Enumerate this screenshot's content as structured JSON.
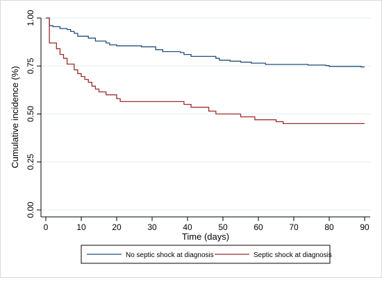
{
  "chart_data": {
    "type": "line",
    "step": true,
    "xlabel": "Time (days)",
    "ylabel": "Cumulative incidence (%)",
    "xlim": [
      0,
      90
    ],
    "ylim": [
      0,
      1
    ],
    "x_ticks": [
      0,
      10,
      20,
      30,
      40,
      50,
      60,
      70,
      80,
      90
    ],
    "y_ticks": [
      0,
      0.25,
      0.5,
      0.75,
      1
    ],
    "x_tick_labels": [
      "0",
      "10",
      "20",
      "30",
      "40",
      "50",
      "60",
      "70",
      "80",
      "90"
    ],
    "y_tick_labels": [
      "0.00",
      "0.25",
      "0.50",
      "0.75",
      "1.00"
    ],
    "grid": "horizontal",
    "legend_position": "bottom",
    "series": [
      {
        "name": "No septic shock at diagnosis",
        "color": "#1f4e79",
        "x": [
          0,
          1,
          2,
          4,
          6,
          7,
          8,
          9,
          12,
          14,
          17,
          18,
          20,
          27,
          31,
          33,
          38,
          39,
          41,
          48,
          49,
          52,
          55,
          58,
          62,
          74,
          79,
          80,
          89,
          90
        ],
        "y": [
          1.0,
          0.96,
          0.955,
          0.945,
          0.94,
          0.93,
          0.92,
          0.905,
          0.895,
          0.88,
          0.87,
          0.86,
          0.855,
          0.85,
          0.835,
          0.825,
          0.82,
          0.81,
          0.8,
          0.79,
          0.78,
          0.775,
          0.77,
          0.765,
          0.758,
          0.755,
          0.752,
          0.748,
          0.745,
          0.745
        ]
      },
      {
        "name": "Septic shock at diagnosis",
        "color": "#9b2c2c",
        "x": [
          0,
          1,
          3,
          4,
          5,
          6,
          8,
          9,
          10,
          11,
          12,
          13,
          14,
          15,
          17,
          20,
          21,
          38,
          39,
          41,
          46,
          48,
          55,
          59,
          65,
          67,
          90
        ],
        "y": [
          1.0,
          0.87,
          0.84,
          0.81,
          0.79,
          0.76,
          0.73,
          0.71,
          0.695,
          0.68,
          0.665,
          0.645,
          0.63,
          0.615,
          0.6,
          0.58,
          0.565,
          0.565,
          0.55,
          0.535,
          0.515,
          0.5,
          0.485,
          0.47,
          0.46,
          0.45,
          0.45
        ]
      }
    ]
  }
}
